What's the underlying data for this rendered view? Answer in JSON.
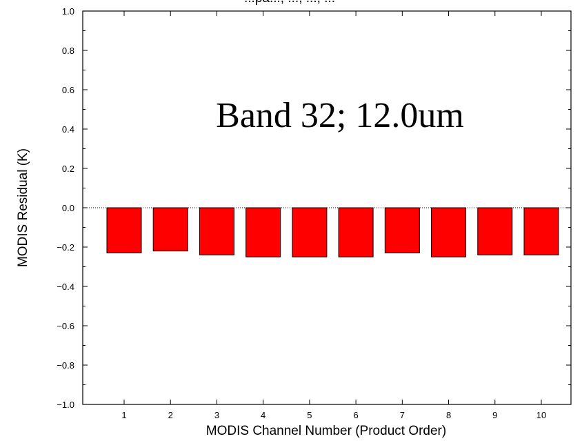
{
  "chart_data": {
    "type": "bar",
    "title": "...pa..., ..., ..., ...",
    "annotation": "Band 32; 12.0um",
    "xlabel": "MODIS Channel Number (Product Order)",
    "ylabel": "MODIS Residual (K)",
    "categories": [
      "1",
      "2",
      "3",
      "4",
      "5",
      "6",
      "7",
      "8",
      "9",
      "10"
    ],
    "values": [
      -0.23,
      -0.22,
      -0.24,
      -0.25,
      -0.25,
      -0.25,
      -0.23,
      -0.25,
      -0.24,
      -0.24
    ],
    "ylim": [
      -1.0,
      1.0
    ],
    "yticks": [
      "1.0",
      "0.8",
      "0.6",
      "0.4",
      "0.2",
      "0.0",
      "-0.2",
      "-0.4",
      "-0.6",
      "-0.8",
      "-1.0"
    ],
    "bar_color": "#ff0000",
    "grid": false,
    "zero_line": "dotted"
  }
}
